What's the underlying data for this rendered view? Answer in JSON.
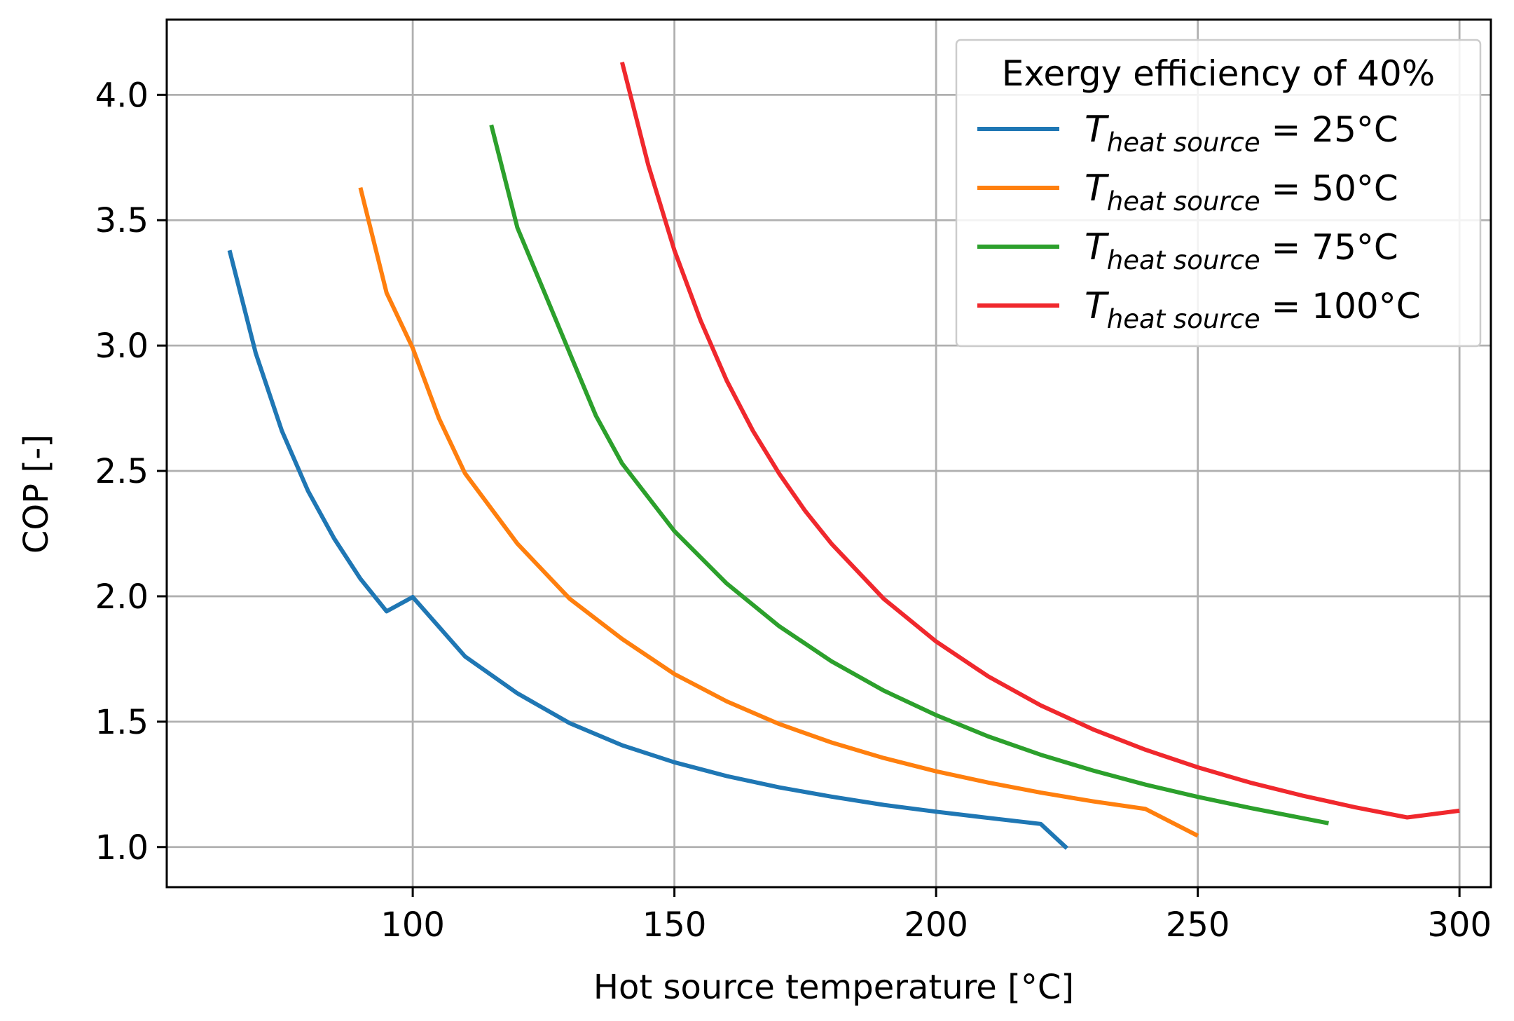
{
  "chart_data": {
    "type": "line",
    "xlabel": "Hot source temperature [°C]",
    "ylabel": "COP [-]",
    "xlim": [
      53,
      306
    ],
    "ylim": [
      0.84,
      4.3
    ],
    "x_ticks": [
      100,
      150,
      200,
      250,
      300
    ],
    "y_ticks": [
      1.0,
      1.5,
      2.0,
      2.5,
      3.0,
      3.5,
      4.0
    ],
    "grid": true,
    "legend": {
      "placement": "top-right",
      "title": "Exergy efficiency of 40%"
    },
    "series": [
      {
        "name": "T_heat source = 25°C",
        "legend_symbol": "T",
        "legend_subscript": "heat source",
        "legend_value": " = 25°C",
        "color": "#1f77b4",
        "heat_source_c": 25,
        "x": [
          65,
          70,
          75,
          80,
          85,
          90,
          95,
          100,
          110,
          120,
          130,
          140,
          150,
          160,
          170,
          180,
          190,
          200,
          210,
          220,
          225
        ],
        "y": [
          3.38,
          2.97,
          2.66,
          2.42,
          2.23,
          2.07,
          1.94,
          1.997,
          1.76,
          1.613,
          1.494,
          1.406,
          1.338,
          1.283,
          1.238,
          1.201,
          1.168,
          1.141,
          1.116,
          1.092,
          0.995
        ]
      },
      {
        "name": "T_heat source = 50°C",
        "legend_symbol": "T",
        "legend_subscript": "heat source",
        "legend_value": " = 50°C",
        "color": "#ff7f0e",
        "heat_source_c": 50,
        "x": [
          90,
          95,
          100,
          105,
          110,
          120,
          130,
          140,
          150,
          160,
          170,
          180,
          190,
          200,
          210,
          220,
          230,
          240,
          250
        ],
        "y": [
          3.63,
          3.21,
          2.99,
          2.71,
          2.49,
          2.21,
          1.99,
          1.83,
          1.69,
          1.581,
          1.491,
          1.417,
          1.355,
          1.302,
          1.257,
          1.217,
          1.182,
          1.152,
          1.045
        ]
      },
      {
        "name": "T_heat source = 75°C",
        "legend_symbol": "T",
        "legend_subscript": "heat source",
        "legend_value": " = 75°C",
        "color": "#2ca02c",
        "heat_source_c": 75,
        "x": [
          115,
          120,
          125,
          130,
          135,
          140,
          150,
          160,
          170,
          180,
          190,
          200,
          210,
          220,
          230,
          240,
          250,
          260,
          275
        ],
        "y": [
          3.88,
          3.47,
          3.22,
          2.97,
          2.72,
          2.53,
          2.26,
          2.051,
          1.881,
          1.741,
          1.624,
          1.526,
          1.441,
          1.368,
          1.305,
          1.249,
          1.2,
          1.156,
          1.095
        ]
      },
      {
        "name": "T_heat source = 100°C",
        "legend_symbol": "T",
        "legend_subscript": "heat source",
        "legend_value": " = 100°C",
        "color": "#f0282d",
        "heat_source_c": 100,
        "x": [
          140,
          145,
          150,
          155,
          160,
          165,
          170,
          175,
          180,
          190,
          200,
          210,
          220,
          230,
          240,
          250,
          260,
          270,
          280,
          290,
          300
        ],
        "y": [
          4.13,
          3.72,
          3.38,
          3.1,
          2.86,
          2.66,
          2.49,
          2.34,
          2.21,
          1.99,
          1.82,
          1.68,
          1.565,
          1.469,
          1.388,
          1.318,
          1.257,
          1.205,
          1.159,
          1.118,
          1.145
        ]
      }
    ]
  }
}
